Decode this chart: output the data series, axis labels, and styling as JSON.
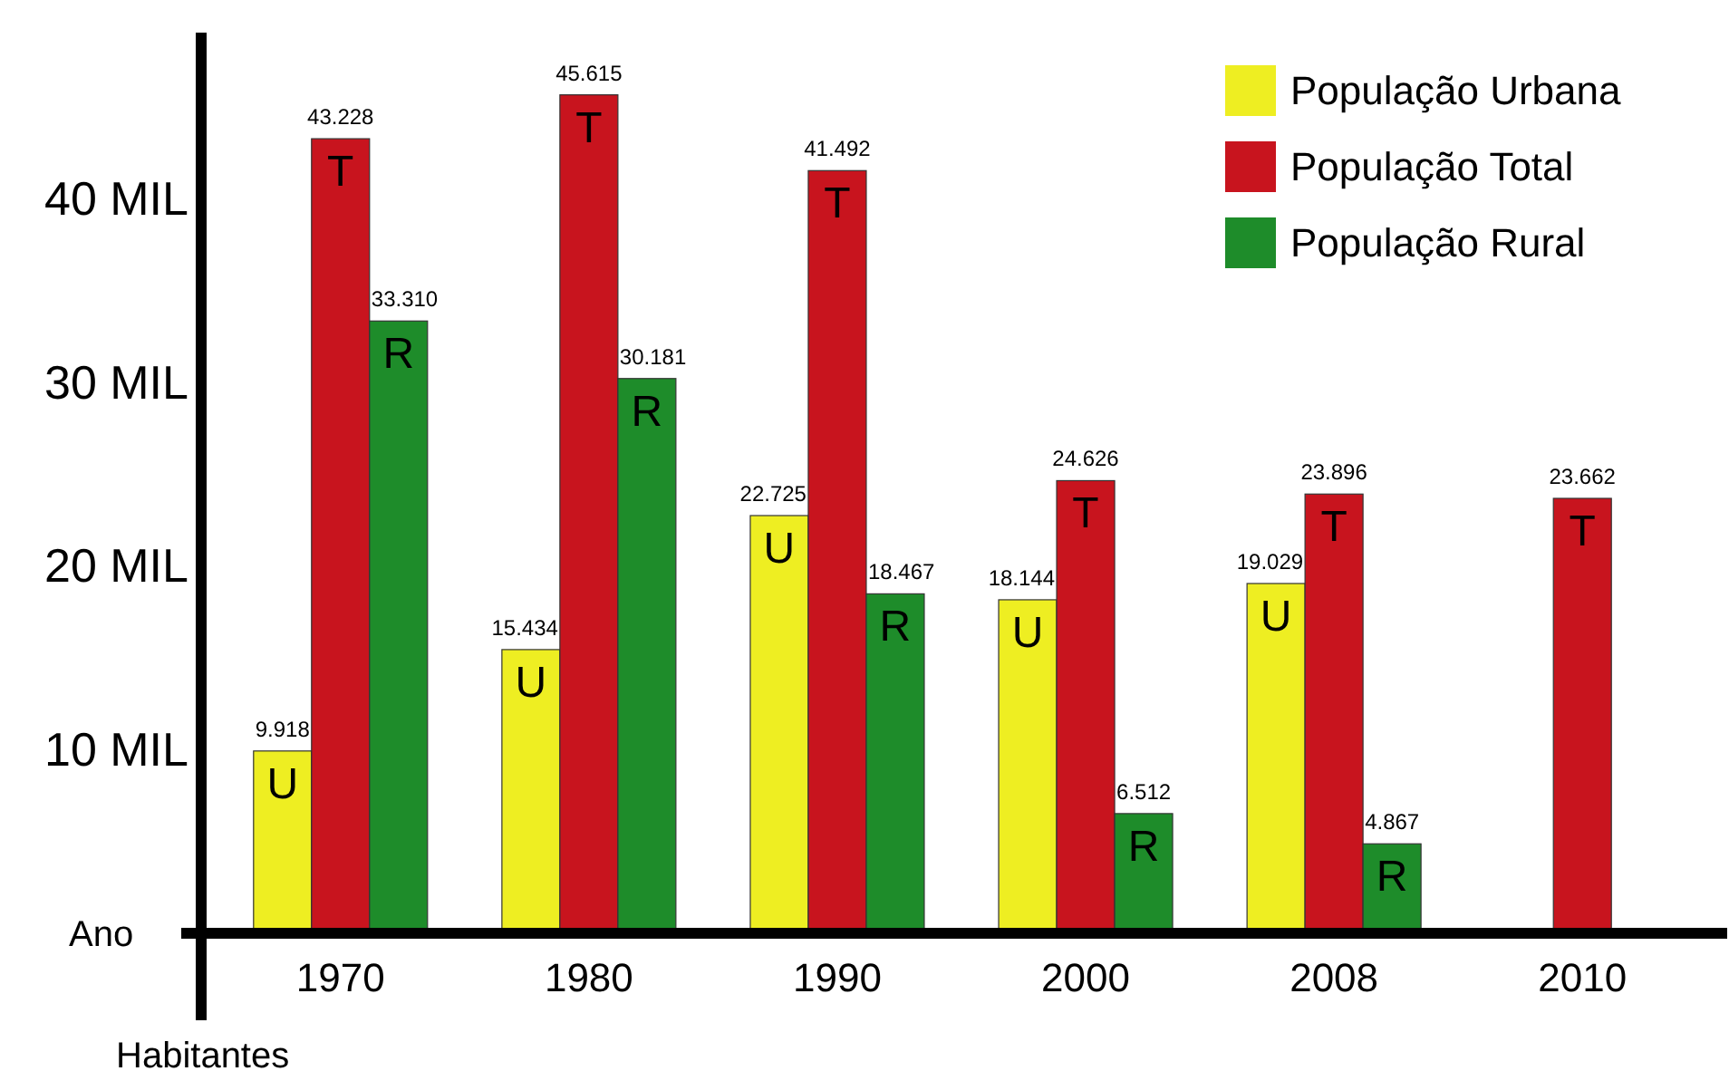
{
  "chart_data": {
    "type": "bar",
    "xlabel": "Ano",
    "ylabel": "Habitantes",
    "categories": [
      "1970",
      "1980",
      "1990",
      "2000",
      "2008",
      "2010"
    ],
    "series": [
      {
        "name": "População Urbana",
        "color": "#eeee22",
        "values": [
          9.918,
          15.434,
          22.725,
          18.144,
          19.029,
          null
        ],
        "value_labels": [
          "9.918",
          "15.434",
          "22.725",
          "18.144",
          "19.029",
          null
        ]
      },
      {
        "name": "População Total",
        "color": "#c8141e",
        "values": [
          43.228,
          45.615,
          41.492,
          24.626,
          23.896,
          23.662
        ],
        "value_labels": [
          "43.228",
          "45.615",
          "41.492",
          "24.626",
          "23.896",
          "23.662"
        ]
      },
      {
        "name": "População Rural",
        "color": "#1e8c2a",
        "values": [
          33.31,
          30.181,
          18.467,
          6.512,
          4.867,
          null
        ],
        "value_labels": [
          "33.310",
          "30.181",
          "18.467",
          "6.512",
          "4.867",
          null
        ]
      }
    ],
    "ylim": [
      0,
      49
    ],
    "yticks": [
      {
        "value": 10,
        "label": "10 MIL"
      },
      {
        "value": 20,
        "label": "20 MIL"
      },
      {
        "value": 30,
        "label": "30 MIL"
      },
      {
        "value": 40,
        "label": "40 MIL"
      }
    ],
    "legend": "top right",
    "grid": false,
    "annotations": [
      "U",
      "U",
      "U",
      "U",
      "U",
      "T",
      "T",
      "T",
      "T",
      "T",
      "T",
      "R",
      "R",
      "R",
      "R",
      "R"
    ]
  }
}
